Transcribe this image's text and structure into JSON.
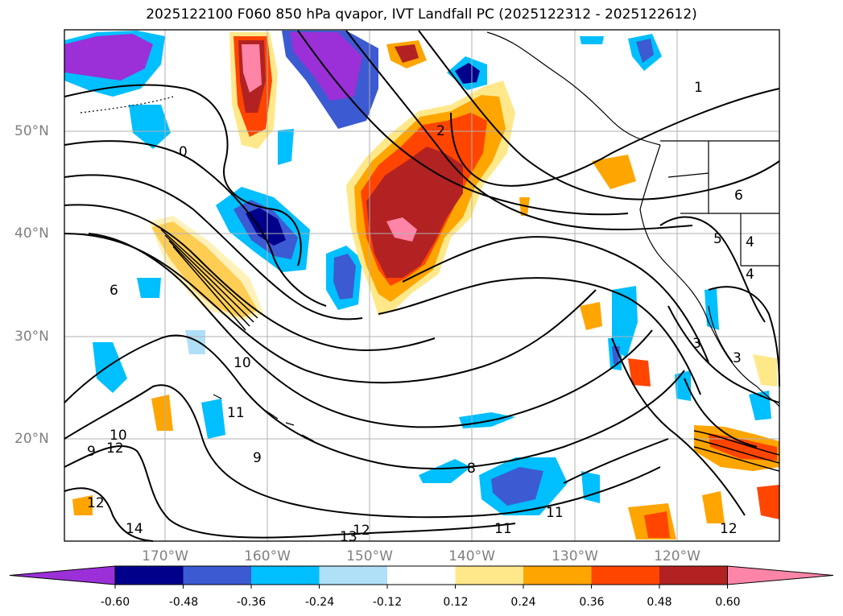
{
  "title": "2025122100 F060 850 hPa qvapor, IVT Landfall PC (2025122312 - 2025122612)",
  "lat_labels": [
    "50°N",
    "40°N",
    "30°N",
    "20°N"
  ],
  "lon_labels": [
    "170°W",
    "160°W",
    "150°W",
    "140°W",
    "130°W",
    "120°W"
  ],
  "contour_labels": [
    "1",
    "0",
    "2",
    "6",
    "5",
    "4",
    "4",
    "3",
    "3",
    "6",
    "10",
    "11",
    "9",
    "8",
    "11",
    "11",
    "12",
    "12",
    "12",
    "13",
    "14",
    "9",
    "10",
    "12"
  ],
  "colorbar": {
    "ticks": [
      "-0.60",
      "-0.48",
      "-0.36",
      "-0.24",
      "-0.12",
      "0.12",
      "0.24",
      "0.36",
      "0.48",
      "0.60"
    ],
    "colors": [
      "#9b30d8",
      "#00008b",
      "#3c5ad2",
      "#00bfff",
      "#b0e0f8",
      "#ffffff",
      "#ffe88a",
      "#ffa500",
      "#ff4500",
      "#b22222",
      "#ff85a8"
    ]
  },
  "colors": {
    "land_outline": "#000000",
    "grid": "#b0b0b0",
    "contour": "#000000",
    "axis_label": "#808080"
  }
}
